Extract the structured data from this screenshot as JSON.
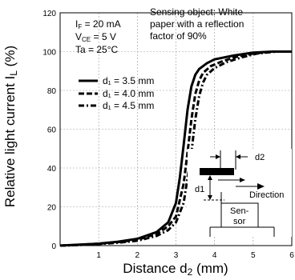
{
  "chart_data": {
    "type": "line",
    "xlabel": "Distance d",
    "xlabel_sub": "2",
    "xlabel_unit": " (mm)",
    "ylabel": "Relative light current  I",
    "ylabel_sub": "L",
    "ylabel_unit": " (%)",
    "xlim": [
      0,
      6
    ],
    "ylim": [
      0,
      120
    ],
    "xticks": [
      1,
      2,
      3,
      4,
      5,
      6
    ],
    "yticks": [
      0,
      20,
      40,
      60,
      80,
      100,
      120
    ],
    "grid": true,
    "conditions": {
      "line1_main": "I",
      "line1_sub": "F",
      "line1_rest": " = 20 mA",
      "line2_main": "V",
      "line2_sub": "CE",
      "line2_rest": " = 5 V",
      "line3": "Ta = 25°C"
    },
    "sensing_object": [
      "Sensing object: White",
      "paper with a reflection",
      "factor of 90%"
    ],
    "series": [
      {
        "name": "d₁ = 3.5 mm",
        "style": "solid",
        "x": [
          0,
          0.5,
          1.0,
          1.5,
          2.0,
          2.5,
          2.8,
          3.0,
          3.1,
          3.2,
          3.3,
          3.4,
          3.5,
          3.6,
          3.8,
          4.0,
          4.5,
          5.0,
          5.5,
          6.0
        ],
        "y": [
          0,
          0.5,
          1,
          2,
          3.5,
          7,
          12,
          22,
          35,
          52,
          70,
          82,
          88,
          91,
          94,
          96,
          98,
          99.5,
          100,
          100
        ]
      },
      {
        "name": "d₁ = 4.0 mm",
        "style": "dashed",
        "x": [
          0,
          0.5,
          1.0,
          1.5,
          2.0,
          2.5,
          2.8,
          3.0,
          3.2,
          3.3,
          3.4,
          3.5,
          3.6,
          3.7,
          3.9,
          4.2,
          4.6,
          5.0,
          5.5,
          6.0
        ],
        "y": [
          0,
          0.4,
          1,
          1.8,
          3,
          6,
          10,
          15,
          32,
          48,
          65,
          78,
          85,
          89,
          92.5,
          95,
          97.5,
          99,
          100,
          100
        ]
      },
      {
        "name": "d₁ = 4.5 mm",
        "style": "dashdot",
        "x": [
          0,
          0.5,
          1.0,
          1.5,
          2.0,
          2.5,
          2.8,
          3.0,
          3.2,
          3.4,
          3.5,
          3.6,
          3.7,
          3.8,
          4.0,
          4.3,
          4.7,
          5.1,
          5.6,
          6.0
        ],
        "y": [
          0,
          0.3,
          0.8,
          1.5,
          2.5,
          5,
          8,
          12,
          22,
          48,
          65,
          77,
          84,
          88,
          91.5,
          94.5,
          97,
          99,
          100,
          100
        ]
      }
    ],
    "inset": {
      "d2": "d2",
      "d1": "d1",
      "direction": "Direction",
      "sensor": [
        "Sen-",
        "sor"
      ]
    }
  }
}
